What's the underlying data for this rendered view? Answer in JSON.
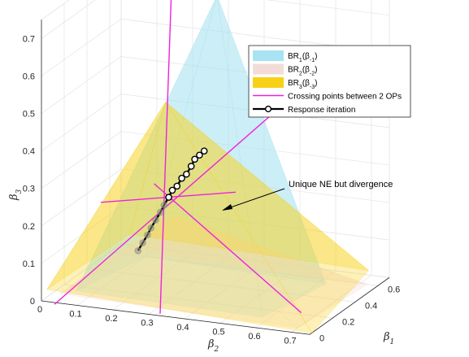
{
  "chart_data": {
    "type": "surface-3d",
    "axes": {
      "x": {
        "label": "β",
        "sub": "2",
        "ticks": [
          "0",
          "0.1",
          "0.2",
          "0.3",
          "0.4",
          "0.5",
          "0.6",
          "0.7"
        ],
        "range": [
          0,
          0.75
        ]
      },
      "y": {
        "label": "β",
        "sub": "1",
        "ticks": [
          "0",
          "0.2",
          "0.4",
          "0.6"
        ],
        "range": [
          0,
          0.7
        ]
      },
      "z": {
        "label": "β",
        "sub": "3",
        "ticks": [
          "0",
          "0.1",
          "0.2",
          "0.3",
          "0.4",
          "0.5",
          "0.6",
          "0.7"
        ],
        "range": [
          0,
          0.75
        ]
      }
    },
    "grid": true,
    "legend": {
      "placement": "top-right",
      "entries": [
        {
          "kind": "patch",
          "main": "BR",
          "sub": "1",
          "mid": "(β",
          "subarg": "-1",
          "close": ")",
          "color": "#a7e3f2"
        },
        {
          "kind": "patch",
          "main": "BR",
          "sub": "2",
          "mid": "(β",
          "subarg": "-2",
          "close": ")",
          "color": "#f3dcd8"
        },
        {
          "kind": "patch",
          "main": "BR",
          "sub": "3",
          "mid": "(β",
          "subarg": "-3",
          "close": ")",
          "color": "#f7d117"
        },
        {
          "kind": "line",
          "text": "Crossing points between 2 OPs",
          "color": "#ee22dd"
        },
        {
          "kind": "line-marker",
          "text": "Response iteration",
          "color": "#000000"
        }
      ]
    },
    "annotation": {
      "text": "Unique NE but divergence"
    },
    "series": [
      {
        "name": "Response iteration",
        "marker": "circle",
        "color": "#000000",
        "points": [
          [
            0.27,
            0.27,
            0.25
          ],
          [
            0.28,
            0.27,
            0.27
          ],
          [
            0.29,
            0.28,
            0.28
          ],
          [
            0.3,
            0.29,
            0.3
          ],
          [
            0.31,
            0.3,
            0.31
          ],
          [
            0.32,
            0.31,
            0.33
          ],
          [
            0.33,
            0.31,
            0.35
          ],
          [
            0.34,
            0.32,
            0.36
          ],
          [
            0.35,
            0.33,
            0.37
          ],
          [
            0.26,
            0.26,
            0.23
          ],
          [
            0.25,
            0.26,
            0.21
          ],
          [
            0.24,
            0.25,
            0.19
          ],
          [
            0.23,
            0.24,
            0.17
          ],
          [
            0.22,
            0.24,
            0.15
          ],
          [
            0.21,
            0.23,
            0.13
          ],
          [
            0.2,
            0.22,
            0.11
          ]
        ]
      }
    ]
  }
}
